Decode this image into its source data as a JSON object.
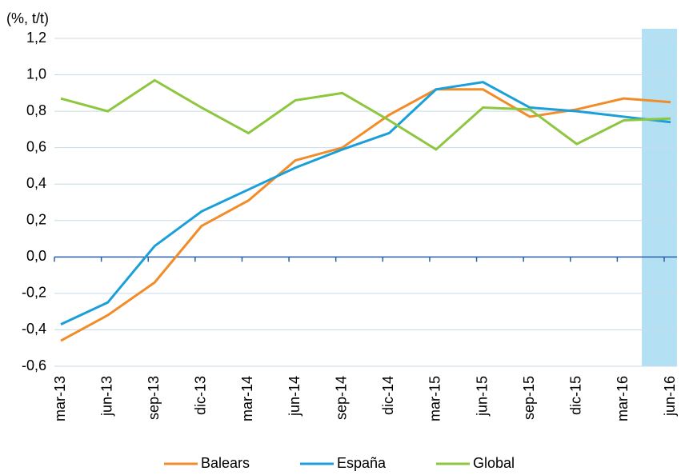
{
  "chart_data": {
    "type": "line",
    "y_label": "(%, t/t)",
    "categories": [
      "mar-13",
      "jun-13",
      "sep-13",
      "dic-13",
      "mar-14",
      "jun-14",
      "sep-14",
      "dic-14",
      "mar-15",
      "jun-15",
      "sep-15",
      "dic-15",
      "mar-16",
      "jun-16"
    ],
    "series": [
      {
        "name": "Balears",
        "color": "#f28c28",
        "values": [
          -0.46,
          -0.32,
          -0.14,
          0.17,
          0.31,
          0.53,
          0.6,
          0.78,
          0.92,
          0.92,
          0.77,
          0.81,
          0.87,
          0.85
        ]
      },
      {
        "name": "España",
        "color": "#1a9fd9",
        "values": [
          -0.37,
          -0.25,
          0.06,
          0.25,
          0.37,
          0.49,
          0.59,
          0.68,
          0.92,
          0.96,
          0.82,
          0.8,
          0.77,
          0.74
        ]
      },
      {
        "name": "Global",
        "color": "#8dc63f",
        "values": [
          0.87,
          0.8,
          0.97,
          0.82,
          0.68,
          0.86,
          0.9,
          0.75,
          0.59,
          0.82,
          0.81,
          0.62,
          0.75,
          0.76
        ]
      }
    ],
    "ylim": [
      -0.6,
      1.2
    ],
    "yticks": [
      {
        "value": -0.6,
        "label": "-0,6"
      },
      {
        "value": -0.4,
        "label": "-0,4"
      },
      {
        "value": -0.2,
        "label": "-0,2"
      },
      {
        "value": 0,
        "label": "0,0"
      },
      {
        "value": 0.2,
        "label": "0,2"
      },
      {
        "value": 0.4,
        "label": "0,4"
      },
      {
        "value": 0.6,
        "label": "0,6"
      },
      {
        "value": 0.8,
        "label": "0,8"
      },
      {
        "value": 1.0,
        "label": "1,0"
      },
      {
        "value": 1.2,
        "label": "1,2"
      }
    ],
    "grid": true,
    "legend": "bottom"
  }
}
